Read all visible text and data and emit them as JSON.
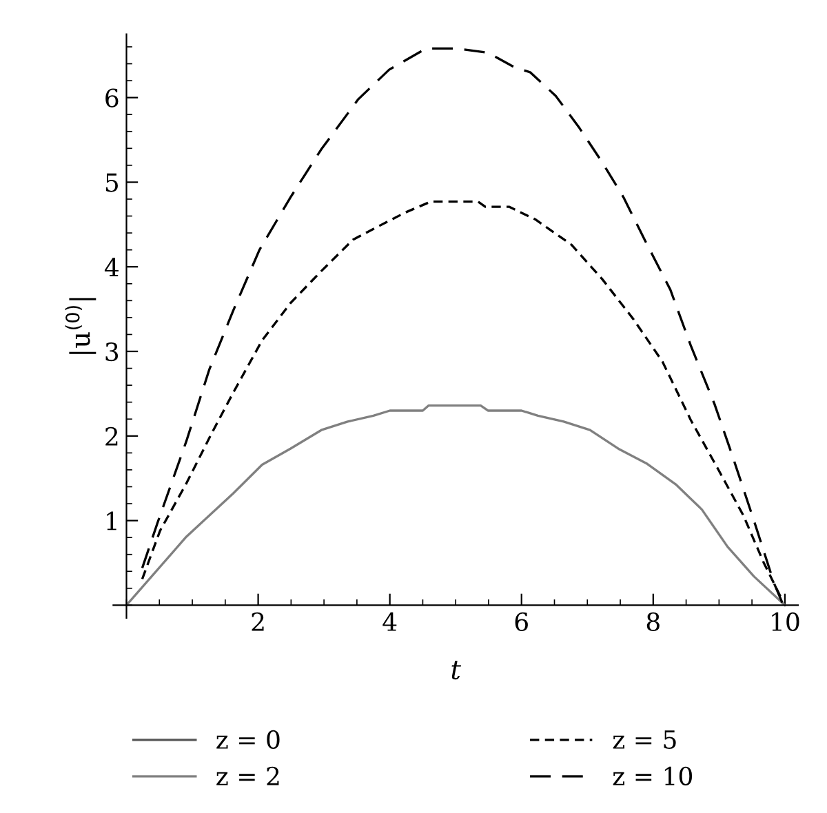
{
  "chart_data": {
    "type": "line",
    "xlabel": "t",
    "ylabel": "|u$^{(0)}$|",
    "xlim": [
      -0.2,
      10.2
    ],
    "ylim": [
      -0.15,
      6.75
    ],
    "xticks": [
      2,
      4,
      6,
      8,
      10
    ],
    "yticks": [
      1,
      2,
      3,
      4,
      5,
      6
    ],
    "grid": false,
    "legend": "bottom",
    "marker": "none",
    "series": [
      {
        "name": "z = 0",
        "color": "#555555",
        "line_style": "solid"
      },
      {
        "name": "z = 2",
        "color": "#808080",
        "line_style": "solid",
        "x": [
          0,
          0.91,
          1.62,
          2.06,
          2.49,
          2.96,
          3.36,
          3.75,
          4.0,
          4.5,
          4.59,
          5.38,
          5.49,
          6.0,
          6.25,
          6.64,
          7.04,
          7.47,
          7.91,
          8.34,
          8.74,
          9.13,
          9.53,
          10.0
        ],
        "values": [
          0,
          0.81,
          1.32,
          1.66,
          1.85,
          2.07,
          2.17,
          2.24,
          2.3,
          2.3,
          2.36,
          2.36,
          2.3,
          2.3,
          2.24,
          2.17,
          2.07,
          1.85,
          1.67,
          1.43,
          1.13,
          0.69,
          0.34,
          0
        ]
      },
      {
        "name": "z = 5",
        "color": "#000000",
        "line_style": "dashed",
        "x": [
          0.24,
          0.51,
          0.91,
          1.3,
          1.62,
          2.06,
          2.49,
          2.96,
          3.44,
          3.83,
          4.23,
          4.62,
          5.34,
          5.45,
          5.81,
          6.21,
          6.76,
          7.23,
          7.7,
          8.14,
          8.57,
          8.97,
          9.37,
          9.68,
          9.96
        ],
        "values": [
          0.31,
          0.88,
          1.44,
          2.04,
          2.51,
          3.13,
          3.57,
          3.95,
          4.32,
          4.48,
          4.64,
          4.77,
          4.77,
          4.71,
          4.71,
          4.56,
          4.26,
          3.85,
          3.38,
          2.88,
          2.19,
          1.63,
          1.06,
          0.5,
          0.06
        ]
      },
      {
        "name": "z = 10",
        "color": "#000000",
        "line_style": "dashed",
        "x": [
          0.24,
          0.47,
          0.91,
          1.26,
          1.62,
          2.02,
          2.49,
          2.96,
          3.52,
          3.99,
          4.55,
          5.02,
          5.49,
          5.89,
          6.13,
          6.52,
          6.88,
          7.23,
          7.55,
          7.87,
          8.26,
          8.57,
          8.93,
          9.21,
          9.53,
          9.84,
          9.96
        ],
        "values": [
          0.44,
          0.97,
          1.94,
          2.79,
          3.48,
          4.2,
          4.82,
          5.39,
          5.98,
          6.33,
          6.58,
          6.58,
          6.53,
          6.36,
          6.3,
          6.02,
          5.64,
          5.23,
          4.82,
          4.32,
          3.73,
          3.07,
          2.38,
          1.75,
          1.0,
          0.25,
          0.03
        ]
      }
    ]
  }
}
